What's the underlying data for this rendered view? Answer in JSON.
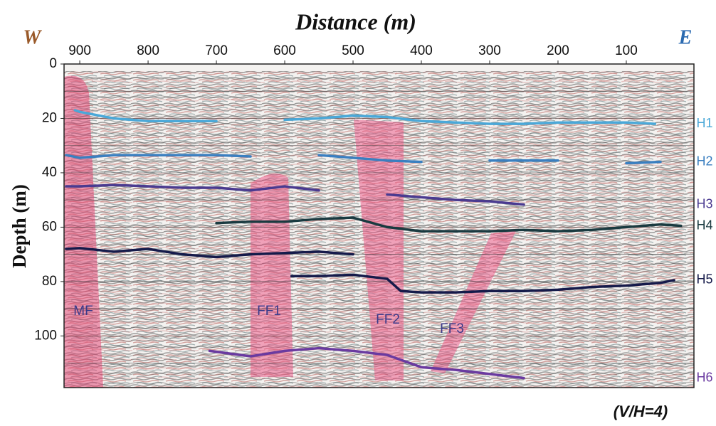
{
  "chart_data": {
    "type": "line",
    "title": "Distance (m)",
    "y_label": "Depth (m)",
    "west_label": "W",
    "east_label": "E",
    "note": "(V/H=4)",
    "xlim": [
      923,
      1
    ],
    "ylim": [
      0,
      119
    ],
    "xticks": [
      900,
      800,
      700,
      600,
      500,
      400,
      300,
      200,
      100
    ],
    "yticks": [
      0,
      20,
      40,
      60,
      80,
      100
    ],
    "grid_yticks": [
      10,
      20,
      30,
      40,
      50,
      60,
      70,
      80,
      90,
      100,
      110
    ],
    "series": [
      {
        "name": "H1",
        "color": "#4aa8d8",
        "x": [
          907,
          900,
          850,
          800,
          750,
          700,
          650,
          600,
          550,
          500,
          450,
          400,
          350,
          300,
          250,
          200,
          150,
          100,
          58
        ],
        "values": [
          17,
          17.6,
          20,
          21,
          21,
          21,
          null,
          20.5,
          20,
          19,
          19.5,
          21,
          21.5,
          22,
          22,
          21.5,
          21.5,
          21.5,
          22
        ]
      },
      {
        "name": "H2",
        "color": "#3a7fc0",
        "x": [
          920,
          900,
          850,
          800,
          750,
          700,
          650,
          600,
          550,
          500,
          450,
          400,
          350,
          300,
          250,
          200,
          150,
          100,
          50
        ],
        "values": [
          33.5,
          34.5,
          33.5,
          33.5,
          33.5,
          33.5,
          34,
          null,
          33.5,
          34.5,
          35.5,
          36,
          null,
          35.5,
          35.5,
          35.5,
          null,
          36.5,
          36
        ]
      },
      {
        "name": "H3",
        "color": "#4a3a90",
        "x": [
          920,
          900,
          850,
          800,
          750,
          700,
          650,
          600,
          550,
          500,
          450,
          400,
          350,
          300,
          250
        ],
        "values": [
          45,
          45,
          44.5,
          45,
          45.5,
          45.5,
          46.5,
          45,
          46.5,
          null,
          48,
          49,
          50,
          50.5,
          51.7
        ]
      },
      {
        "name": "H4",
        "color": "#1a3a40",
        "x": [
          700,
          650,
          600,
          550,
          500,
          450,
          400,
          350,
          300,
          250,
          200,
          150,
          100,
          50,
          20
        ],
        "values": [
          58.5,
          58,
          58,
          57,
          56.5,
          60,
          61.5,
          61.5,
          61.5,
          61,
          61.5,
          61,
          60,
          59,
          59.5
        ]
      },
      {
        "name": "H5",
        "color": "#151a4a",
        "x": [
          920,
          900,
          850,
          800,
          750,
          700,
          650,
          600,
          550,
          500,
          590,
          590,
          550,
          500,
          450,
          430,
          400,
          350,
          300,
          250,
          200,
          150,
          100,
          50,
          30
        ],
        "values": [
          68,
          67.7,
          69,
          68,
          70,
          71,
          70,
          69.5,
          69,
          70,
          null,
          78,
          78,
          77.5,
          79,
          83.5,
          84,
          84,
          83.5,
          83.5,
          83,
          82,
          81.5,
          80.5,
          79.5
        ]
      },
      {
        "name": "H6",
        "color": "#6a3aa0",
        "x": [
          710,
          650,
          600,
          550,
          500,
          450,
          400,
          350,
          300,
          250
        ],
        "values": [
          105.5,
          107.5,
          105.5,
          104.5,
          105.5,
          107,
          111.5,
          112.5,
          114,
          115.5
        ]
      }
    ],
    "annotations": [
      "MF",
      "FF1",
      "FF2",
      "FF3"
    ]
  }
}
